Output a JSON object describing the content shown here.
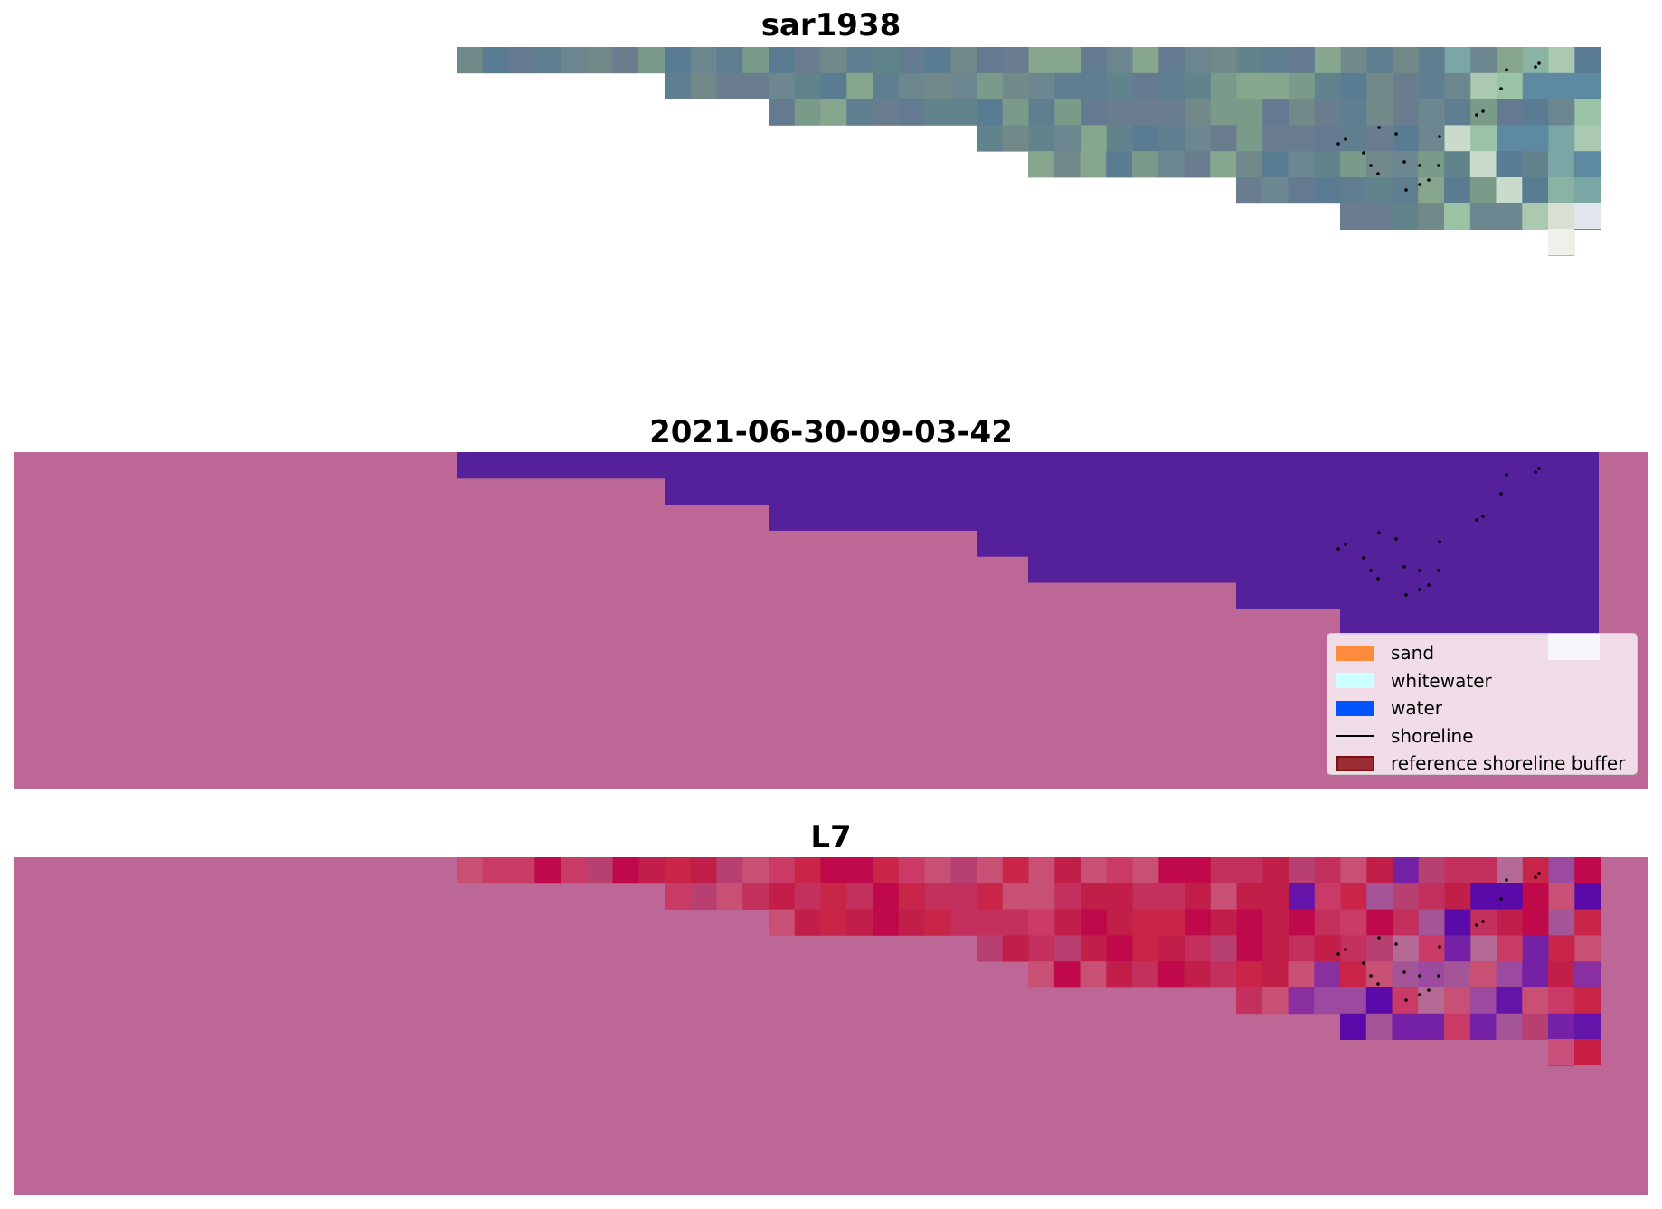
{
  "panels": [
    {
      "title": "sar1938"
    },
    {
      "title": "2021-06-30-09-03-42"
    },
    {
      "title": "L7"
    }
  ],
  "legend": {
    "items": [
      {
        "label": "sand",
        "color": "#ff8c3c",
        "kind": "patch"
      },
      {
        "label": "whitewater",
        "color": "#ccffff",
        "kind": "patch"
      },
      {
        "label": "water",
        "color": "#0055ff",
        "kind": "patch"
      },
      {
        "label": "shoreline",
        "color": "#000000",
        "kind": "line"
      },
      {
        "label": "reference shoreline buffer",
        "color": "#9b2c33",
        "kind": "buffer"
      }
    ]
  },
  "colors": {
    "background_mask": "#bd6797",
    "classified_water": "#54219a",
    "shoreline_points": "#000000"
  }
}
